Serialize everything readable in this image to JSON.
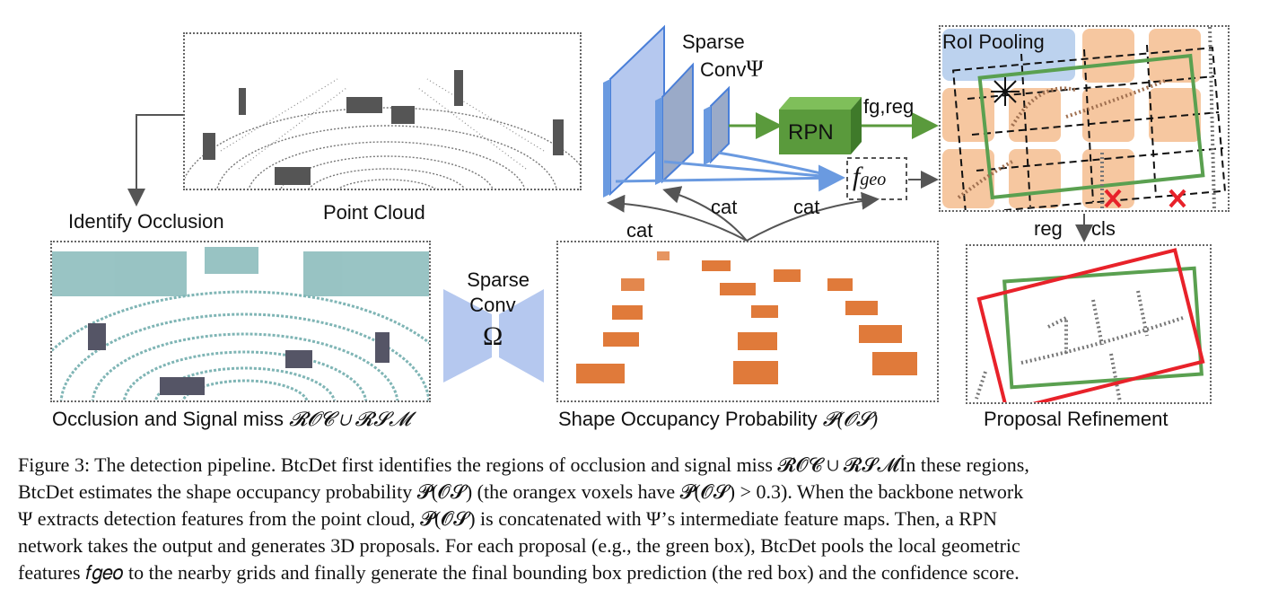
{
  "labels": {
    "point_cloud": "Point Cloud",
    "identify_occlusion": "Identify Occlusion",
    "occlusion_prefix": "Occlusion and Signal miss ",
    "occlusion_math": "𝓡𝓞𝓒 ∪ 𝓡𝓢𝓜",
    "sparse_conv_omega": "Sparse\nConv",
    "omega": "Ω",
    "shape_prefix": "Shape Occupancy Probability ",
    "shape_math": "𝓟(𝓞𝓢)",
    "sparse_conv_psi": "Sparse",
    "conv_psi": "Conv",
    "psi": "Ψ",
    "rpn": "RPN",
    "fg_reg": "fg,reg",
    "f_geo": "f",
    "f_geo_sub": "geo",
    "cat1": "cat",
    "cat2": "cat",
    "cat3": "cat",
    "roi_pooling": "RoI Pooling",
    "reg": "reg",
    "cls": "cls",
    "proposal_refinement": "Proposal Refinement"
  },
  "caption": {
    "lines": [
      "Figure 3: The detection pipeline. BtcDet first identifies the regions of occlusion and signal miss 𝓡𝓞𝓒 ∪ 𝓡𝓢𝓜İn these regions,",
      "BtcDet estimates the shape occupancy probability 𝓟(𝓞𝓢) (the orangex voxels have 𝓟(𝓞𝓢) > 0.3). When the backbone network",
      "Ψ extracts detection features from the point cloud, 𝓟(𝓞𝓢) is concatenated with Ψ’s intermediate feature maps. Then, a RPN",
      "network takes the output and generates 3D proposals. For each proposal (e.g., the green box), BtcDet pools the local geometric",
      "features 𝑓𝑔𝑒𝑜 to the nearby grids and finally generate the final bounding box prediction (the red box) and the confidence score."
    ]
  },
  "colors": {
    "feature_block": "#9aaac8",
    "feature_edge": "#4a7fd8",
    "rpn_green": "#5a9a3c",
    "orange": "#e07a3a",
    "teal": "#7fb5b5",
    "point_gray": "#666666",
    "red_box": "#e8222a",
    "green_box": "#5aa050",
    "arrow_blue": "#6a9ae0",
    "omega_blue": "#b5c8ef"
  }
}
